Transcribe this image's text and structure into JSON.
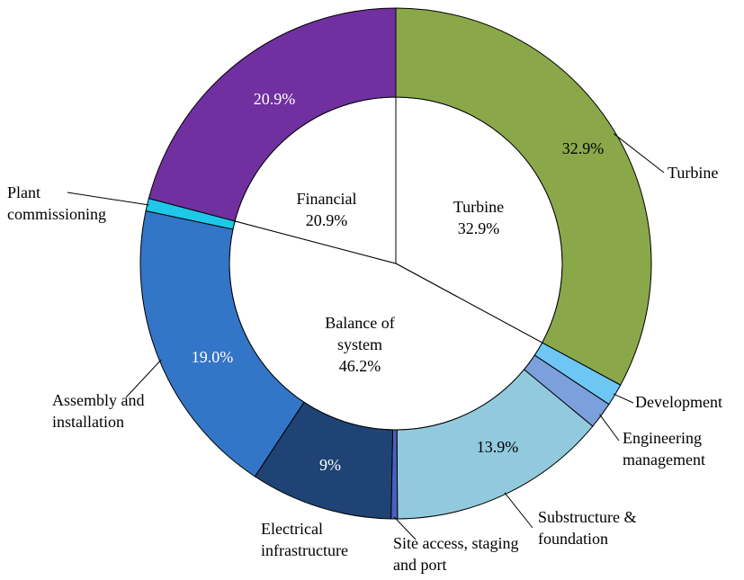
{
  "chart_data": {
    "type": "donut",
    "categories": [
      "Turbine",
      "Development",
      "Engineering management",
      "Substructure & foundation",
      "Site access, staging and port",
      "Electrical infrastructure",
      "Assembly and installation",
      "Plant commissioning",
      "Financial"
    ],
    "values": [
      32.9,
      1.4,
      1.7,
      13.9,
      0.4,
      9,
      19.0,
      0.8,
      20.9
    ],
    "value_labels": [
      "32.9%",
      null,
      null,
      "13.9%",
      null,
      "9%",
      "19.0%",
      null,
      "20.9%"
    ],
    "colors": [
      "#8aa84a",
      "#6ec6f5",
      "#7ba0dc",
      "#92cadd",
      "#4b5fc0",
      "#1f4374",
      "#3375c6",
      "#1ec8e8",
      "#7030a0"
    ],
    "groups": {
      "categories": [
        "Turbine",
        "Balance of system",
        "Financial"
      ],
      "values": [
        32.9,
        46.2,
        20.9
      ],
      "value_labels": [
        "32.9%",
        "46.2%",
        "20.9%"
      ]
    }
  }
}
